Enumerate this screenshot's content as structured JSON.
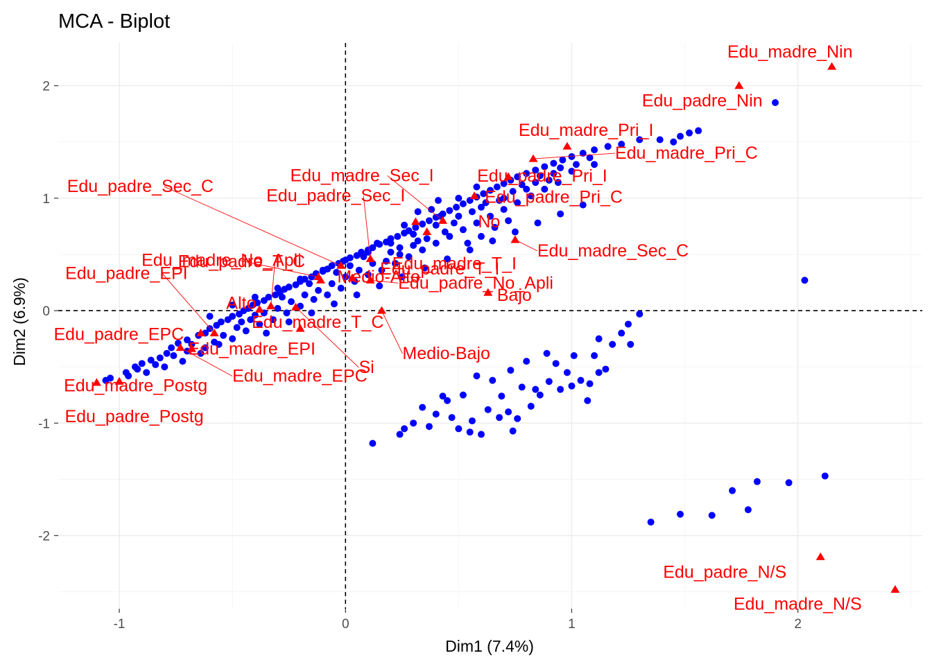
{
  "chart_data": {
    "type": "scatter",
    "title": "MCA - Biplot",
    "xlabel": "Dim1 (7.4%)",
    "ylabel": "Dim2 (6.9%)",
    "xlim": [
      -1.27,
      2.55
    ],
    "ylim": [
      -2.65,
      2.38
    ],
    "x_ticks": [
      -1,
      0,
      1,
      2
    ],
    "y_ticks": [
      -2,
      -1,
      0,
      1,
      2
    ],
    "x_tick_labels": [
      "-1",
      "0",
      "1",
      "2"
    ],
    "y_tick_labels": [
      "-2",
      "-1",
      "0",
      "1",
      "2"
    ],
    "grid": true,
    "reference_lines": {
      "x": 0,
      "y": 0,
      "style": "dashed"
    },
    "colors": {
      "individuals": "#0000ff",
      "variables": "#ff0000",
      "grid_major": "#ebebeb",
      "grid_minor": "#f5f5f5"
    },
    "variable_categories": [
      {
        "label": "Edu_madre_Nin",
        "x": 2.15,
        "y": 2.17
      },
      {
        "label": "Edu_padre_Nin",
        "x": 1.74,
        "y": 2.0
      },
      {
        "label": "Edu_madre_Pri_I",
        "x": 0.98,
        "y": 1.46
      },
      {
        "label": "Edu_padre_Pri_I",
        "x": 0.72,
        "y": 1.19
      },
      {
        "label": "Edu_madre_Pri_C",
        "x": 0.83,
        "y": 1.35
      },
      {
        "label": "Edu_madre_Sec_I",
        "x": 0.43,
        "y": 0.8
      },
      {
        "label": "Edu_padre_Pri_C",
        "x": 0.57,
        "y": 1.02
      },
      {
        "label": "Edu_padre_Sec_C",
        "x": -0.02,
        "y": 0.4
      },
      {
        "label": "Edu_padre_Sec_I",
        "x": 0.11,
        "y": 0.46
      },
      {
        "label": "No",
        "x": 0.31,
        "y": 0.79
      },
      {
        "label": "Edu_madre_No_Apli",
        "x": -0.12,
        "y": 0.3
      },
      {
        "label": "Edu_madre_T_I",
        "x": 0.36,
        "y": 0.7
      },
      {
        "label": "Edu_madre_Sec_C",
        "x": 0.75,
        "y": 0.63
      },
      {
        "label": "Edu_padre_EPI",
        "x": -0.58,
        "y": -0.2
      },
      {
        "label": "Edu_padre_T_C",
        "x": -0.33,
        "y": 0.04
      },
      {
        "label": "Edu_padre_T_I",
        "x": 0.03,
        "y": 0.29
      },
      {
        "label": "Bajo",
        "x": 0.63,
        "y": 0.16
      },
      {
        "label": "Alto",
        "x": -0.38,
        "y": 0.01
      },
      {
        "label": "Medio-Alto",
        "x": -0.11,
        "y": 0.27
      },
      {
        "label": "Edu_padre_No_Apli",
        "x": 0.11,
        "y": 0.27
      },
      {
        "label": "Edu_madre_T_C",
        "x": -0.2,
        "y": -0.16
      },
      {
        "label": "Edu_padre_EPC",
        "x": -0.64,
        "y": -0.2
      },
      {
        "label": "Si",
        "x": -0.22,
        "y": 0.03
      },
      {
        "label": "Medio-Bajo",
        "x": 0.16,
        "y": 0.0
      },
      {
        "label": "Edu_madre_Postg",
        "x": -1.0,
        "y": -0.63
      },
      {
        "label": "Edu_madre_EPI",
        "x": -0.68,
        "y": -0.34
      },
      {
        "label": "Edu_madre_EPC",
        "x": -0.73,
        "y": -0.33
      },
      {
        "label": "Edu_padre_Postg",
        "x": -1.1,
        "y": -0.64
      },
      {
        "label": "Edu_padre_N/S",
        "x": 2.1,
        "y": -2.19
      },
      {
        "label": "Edu_madre_N/S",
        "x": 2.43,
        "y": -2.48
      }
    ],
    "individuals": [
      [
        -1.04,
        -0.6
      ],
      [
        -0.97,
        -0.55
      ],
      [
        -0.93,
        -0.5
      ],
      [
        -0.9,
        -0.47
      ],
      [
        -0.86,
        -0.44
      ],
      [
        -0.82,
        -0.42
      ],
      [
        -0.79,
        -0.38
      ],
      [
        -0.77,
        -0.33
      ],
      [
        -0.74,
        -0.29
      ],
      [
        -0.7,
        -0.26
      ],
      [
        -0.68,
        -0.3
      ],
      [
        -0.65,
        -0.22
      ],
      [
        -0.62,
        -0.2
      ],
      [
        -0.6,
        -0.16
      ],
      [
        -0.57,
        -0.13
      ],
      [
        -0.55,
        -0.1
      ],
      [
        -0.52,
        -0.08
      ],
      [
        -0.5,
        -0.05
      ],
      [
        -0.47,
        -0.03
      ],
      [
        -0.45,
        0.0
      ],
      [
        -0.43,
        0.02
      ],
      [
        -0.41,
        0.05
      ],
      [
        -0.39,
        0.07
      ],
      [
        -0.36,
        0.09
      ],
      [
        -0.34,
        0.12
      ],
      [
        -0.31,
        0.14
      ],
      [
        -0.29,
        0.16
      ],
      [
        -0.27,
        0.19
      ],
      [
        -0.25,
        0.21
      ],
      [
        -0.22,
        0.23
      ],
      [
        -0.2,
        0.26
      ],
      [
        -0.18,
        0.28
      ],
      [
        -0.15,
        0.3
      ],
      [
        -0.13,
        0.33
      ],
      [
        -0.1,
        0.35
      ],
      [
        -0.08,
        0.37
      ],
      [
        -0.06,
        0.4
      ],
      [
        -0.03,
        0.42
      ],
      [
        -0.01,
        0.44
      ],
      [
        0.02,
        0.47
      ],
      [
        0.05,
        0.49
      ],
      [
        0.07,
        0.52
      ],
      [
        0.1,
        0.54
      ],
      [
        0.12,
        0.56
      ],
      [
        0.15,
        0.59
      ],
      [
        0.18,
        0.61
      ],
      [
        0.2,
        0.64
      ],
      [
        0.23,
        0.66
      ],
      [
        0.26,
        0.69
      ],
      [
        0.28,
        0.71
      ],
      [
        0.31,
        0.74
      ],
      [
        0.34,
        0.77
      ],
      [
        0.37,
        0.8
      ],
      [
        0.4,
        0.83
      ],
      [
        0.43,
        0.86
      ],
      [
        0.46,
        0.89
      ],
      [
        0.49,
        0.92
      ],
      [
        0.52,
        0.95
      ],
      [
        0.55,
        0.98
      ],
      [
        0.58,
        1.01
      ],
      [
        0.61,
        1.04
      ],
      [
        0.64,
        1.07
      ],
      [
        0.67,
        1.1
      ],
      [
        0.7,
        1.13
      ],
      [
        0.73,
        1.16
      ],
      [
        0.76,
        1.19
      ],
      [
        0.8,
        1.22
      ],
      [
        0.84,
        1.25
      ],
      [
        0.88,
        1.28
      ],
      [
        0.92,
        1.31
      ],
      [
        0.96,
        1.34
      ],
      [
        1.0,
        1.37
      ],
      [
        1.05,
        1.4
      ],
      [
        1.1,
        1.43
      ],
      [
        1.16,
        1.46
      ],
      [
        1.22,
        1.48
      ],
      [
        1.3,
        1.52
      ],
      [
        1.39,
        1.52
      ],
      [
        1.48,
        1.55
      ],
      [
        1.56,
        1.6
      ],
      [
        1.9,
        1.85
      ],
      [
        1.45,
        1.5
      ],
      [
        1.52,
        1.58
      ],
      [
        -0.88,
        -0.55
      ],
      [
        -0.8,
        -0.5
      ],
      [
        -0.72,
        -0.45
      ],
      [
        -0.64,
        -0.38
      ],
      [
        -0.56,
        -0.3
      ],
      [
        -0.5,
        -0.25
      ],
      [
        -0.44,
        -0.18
      ],
      [
        -0.38,
        -0.12
      ],
      [
        -0.32,
        -0.08
      ],
      [
        -0.26,
        -0.02
      ],
      [
        -0.2,
        0.04
      ],
      [
        -0.14,
        0.1
      ],
      [
        -0.08,
        0.14
      ],
      [
        -0.02,
        0.2
      ],
      [
        0.04,
        0.26
      ],
      [
        0.1,
        0.32
      ],
      [
        0.16,
        0.36
      ],
      [
        0.22,
        0.42
      ],
      [
        0.28,
        0.48
      ],
      [
        0.34,
        0.54
      ],
      [
        0.4,
        0.6
      ],
      [
        0.46,
        0.66
      ],
      [
        0.52,
        0.72
      ],
      [
        0.58,
        0.78
      ],
      [
        0.64,
        0.84
      ],
      [
        0.7,
        0.9
      ],
      [
        0.76,
        0.96
      ],
      [
        0.82,
        1.02
      ],
      [
        0.88,
        1.08
      ],
      [
        0.94,
        1.14
      ],
      [
        -0.6,
        -0.05
      ],
      [
        -0.5,
        0.05
      ],
      [
        -0.4,
        0.12
      ],
      [
        -0.3,
        0.2
      ],
      [
        -0.2,
        0.28
      ],
      [
        -0.1,
        0.36
      ],
      [
        0.0,
        0.45
      ],
      [
        0.1,
        0.52
      ],
      [
        0.2,
        0.6
      ],
      [
        0.3,
        0.68
      ],
      [
        0.4,
        0.76
      ],
      [
        0.5,
        0.84
      ],
      [
        0.6,
        0.92
      ],
      [
        0.7,
        1.0
      ],
      [
        0.8,
        1.08
      ],
      [
        0.9,
        1.16
      ],
      [
        1.0,
        1.24
      ],
      [
        1.1,
        1.3
      ],
      [
        -0.35,
        -0.2
      ],
      [
        -0.25,
        -0.1
      ],
      [
        -0.15,
        -0.02
      ],
      [
        -0.05,
        0.06
      ],
      [
        0.05,
        0.14
      ],
      [
        0.15,
        0.22
      ],
      [
        0.25,
        0.3
      ],
      [
        0.35,
        0.38
      ],
      [
        0.45,
        0.46
      ],
      [
        0.55,
        0.54
      ],
      [
        0.65,
        0.62
      ],
      [
        0.75,
        0.7
      ],
      [
        0.85,
        0.78
      ],
      [
        0.95,
        0.86
      ],
      [
        1.05,
        0.94
      ],
      [
        0.38,
        0.9
      ],
      [
        0.42,
        0.84
      ],
      [
        0.36,
        0.64
      ],
      [
        0.3,
        0.58
      ],
      [
        0.24,
        0.5
      ],
      [
        0.18,
        0.44
      ],
      [
        0.54,
        0.6
      ],
      [
        0.6,
        0.66
      ],
      [
        0.66,
        0.74
      ],
      [
        0.72,
        0.8
      ],
      [
        0.48,
        0.78
      ],
      [
        0.62,
        0.96
      ],
      [
        0.95,
        1.27
      ],
      [
        1.02,
        1.3
      ],
      [
        1.08,
        1.36
      ],
      [
        0.86,
        1.2
      ],
      [
        0.78,
        1.12
      ],
      [
        1.3,
        -0.03
      ],
      [
        1.25,
        -0.12
      ],
      [
        1.22,
        -0.2
      ],
      [
        1.26,
        -0.3
      ],
      [
        1.18,
        -0.3
      ],
      [
        1.12,
        -0.25
      ],
      [
        1.1,
        -0.4
      ],
      [
        1.15,
        -0.52
      ],
      [
        1.01,
        -0.4
      ],
      [
        0.93,
        -0.47
      ],
      [
        0.89,
        -0.38
      ],
      [
        0.8,
        -0.45
      ],
      [
        0.73,
        -0.53
      ],
      [
        0.65,
        -0.62
      ],
      [
        0.58,
        -0.58
      ],
      [
        0.52,
        -0.75
      ],
      [
        0.45,
        -0.8
      ],
      [
        0.4,
        -0.92
      ],
      [
        0.34,
        -0.86
      ],
      [
        0.3,
        -1.0
      ],
      [
        0.26,
        -1.05
      ],
      [
        0.24,
        -1.1
      ],
      [
        0.12,
        -1.18
      ],
      [
        0.37,
        -1.03
      ],
      [
        0.5,
        -1.05
      ],
      [
        0.55,
        -1.08
      ],
      [
        0.6,
        -1.1
      ],
      [
        0.68,
        -0.95
      ],
      [
        0.72,
        -0.9
      ],
      [
        0.76,
        -0.96
      ],
      [
        0.82,
        -0.85
      ],
      [
        0.86,
        -0.75
      ],
      [
        0.9,
        -0.63
      ],
      [
        0.95,
        -0.7
      ],
      [
        1.0,
        -0.67
      ],
      [
        1.04,
        -0.62
      ],
      [
        1.07,
        -0.8
      ],
      [
        1.08,
        -0.65
      ],
      [
        1.12,
        -0.55
      ],
      [
        0.98,
        -0.55
      ],
      [
        0.84,
        -0.7
      ],
      [
        0.74,
        -1.07
      ],
      [
        0.63,
        -0.88
      ],
      [
        0.56,
        -0.98
      ],
      [
        0.47,
        -0.95
      ],
      [
        0.43,
        -0.76
      ],
      [
        0.69,
        -0.76
      ],
      [
        0.78,
        -0.68
      ],
      [
        2.03,
        0.27
      ],
      [
        1.35,
        -1.88
      ],
      [
        1.48,
        -1.81
      ],
      [
        1.62,
        -1.82
      ],
      [
        1.71,
        -1.6
      ],
      [
        1.78,
        -1.77
      ],
      [
        1.82,
        -1.52
      ],
      [
        1.96,
        -1.53
      ],
      [
        2.12,
        -1.47
      ],
      [
        -0.62,
        -0.33
      ],
      [
        -0.58,
        -0.28
      ],
      [
        -0.54,
        -0.22
      ],
      [
        -0.48,
        -0.15
      ],
      [
        -0.42,
        -0.08
      ],
      [
        -0.36,
        -0.02
      ],
      [
        -0.3,
        0.02
      ],
      [
        -0.24,
        0.08
      ],
      [
        -0.18,
        0.14
      ],
      [
        -0.12,
        0.18
      ],
      [
        -0.06,
        0.24
      ],
      [
        0.0,
        0.3
      ],
      [
        0.06,
        0.36
      ],
      [
        0.12,
        0.42
      ],
      [
        0.24,
        0.56
      ],
      [
        0.32,
        0.62
      ],
      [
        0.44,
        0.7
      ],
      [
        0.56,
        0.88
      ],
      [
        0.68,
        0.98
      ],
      [
        0.74,
        1.06
      ],
      [
        0.84,
        1.14
      ],
      [
        0.92,
        1.22
      ],
      [
        0.26,
        0.76
      ],
      [
        0.14,
        0.6
      ],
      [
        0.08,
        0.48
      ],
      [
        0.2,
        0.52
      ],
      [
        0.32,
        0.88
      ],
      [
        0.41,
        0.98
      ],
      [
        0.5,
        1.0
      ],
      [
        0.58,
        1.1
      ],
      [
        -0.46,
        -0.1
      ],
      [
        -0.4,
        -0.04
      ],
      [
        -0.28,
        0.12
      ],
      [
        -0.16,
        0.24
      ],
      [
        -0.04,
        0.34
      ],
      [
        0.02,
        0.4
      ],
      [
        -0.7,
        -0.36
      ],
      [
        -0.76,
        -0.4
      ],
      [
        -0.84,
        -0.48
      ],
      [
        -0.92,
        -0.52
      ],
      [
        -0.96,
        -0.58
      ],
      [
        -1.06,
        -0.62
      ]
    ]
  }
}
